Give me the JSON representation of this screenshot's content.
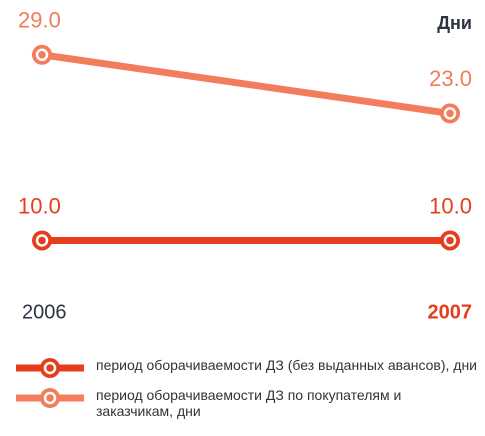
{
  "chart_data": {
    "type": "line",
    "unit_label": "Дни",
    "categories": [
      "2006",
      "2007"
    ],
    "ylim": [
      8,
      30
    ],
    "series": [
      {
        "name": "период оборачиваемости ДЗ (без выданных авансов), дни",
        "color": "#e63e1c",
        "values": [
          10.0,
          10.0
        ],
        "value_labels": [
          "10.0",
          "10.0"
        ]
      },
      {
        "name": "период оборачиваемости ДЗ по покупателям и заказчикам, дни",
        "color": "#f27c5c",
        "values": [
          29.0,
          23.0
        ],
        "value_labels": [
          "29.0",
          "23.0"
        ]
      }
    ]
  }
}
